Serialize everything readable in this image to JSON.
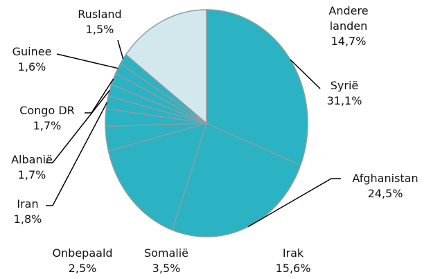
{
  "chart_data": {
    "type": "pie",
    "categories": [
      "Syrië",
      "Afghanistan",
      "Irak",
      "Somalië",
      "Onbepaald",
      "Iran",
      "Albanië",
      "Congo DR",
      "Guinee",
      "Rusland",
      "Andere landen"
    ],
    "values": [
      31.1,
      24.5,
      15.6,
      3.5,
      2.5,
      1.8,
      1.7,
      1.7,
      1.6,
      1.5,
      14.7
    ],
    "value_labels": [
      "31,1%",
      "24,5%",
      "15,6%",
      "3,5%",
      "2,5%",
      "1,8%",
      "1,7%",
      "1,7%",
      "1,6%",
      "1,5%",
      "14,7%"
    ],
    "colors": [
      "#2bb3c3",
      "#2bb3c3",
      "#2bb3c3",
      "#2bb3c3",
      "#2bb3c3",
      "#2bb3c3",
      "#2bb3c3",
      "#2bb3c3",
      "#2bb3c3",
      "#2bb3c3",
      "#d2e8ed"
    ]
  }
}
